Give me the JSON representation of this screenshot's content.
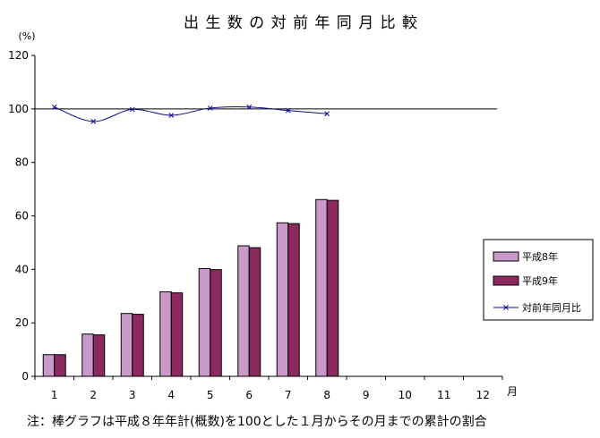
{
  "chart_data": {
    "type": "bar",
    "title": "出 生 数 の 対 前 年 同 月 比 較",
    "ylabel": "(%)",
    "xlabel": "月",
    "ylim": [
      0,
      120
    ],
    "yticks": [
      "0",
      "20",
      "40",
      "60",
      "80",
      "100",
      "120"
    ],
    "categories": [
      "1",
      "2",
      "3",
      "4",
      "5",
      "6",
      "7",
      "8",
      "9",
      "10",
      "11",
      "12"
    ],
    "series": [
      {
        "name": "平成8年",
        "type": "bar",
        "color": "#c99ac9",
        "values": [
          8.1,
          15.8,
          23.5,
          31.6,
          40.3,
          48.8,
          57.4,
          66.1,
          null,
          null,
          null,
          null
        ]
      },
      {
        "name": "平成9年",
        "type": "bar",
        "color": "#8b2a5e",
        "values": [
          8.1,
          15.5,
          23.2,
          31.2,
          39.9,
          48.1,
          57.1,
          65.8,
          null,
          null,
          null,
          null
        ]
      },
      {
        "name": "対前年同月比",
        "type": "line",
        "color": "#0a0a8c",
        "values": [
          100.7,
          95.3,
          99.8,
          97.6,
          100.3,
          100.7,
          99.4,
          98.2,
          null,
          null,
          null,
          null
        ]
      }
    ],
    "reference_line": 100,
    "legend_position": "right",
    "note": "注：棒グラフは平成８年年計(概数)を100とした１月からその月までの累計の割合"
  }
}
